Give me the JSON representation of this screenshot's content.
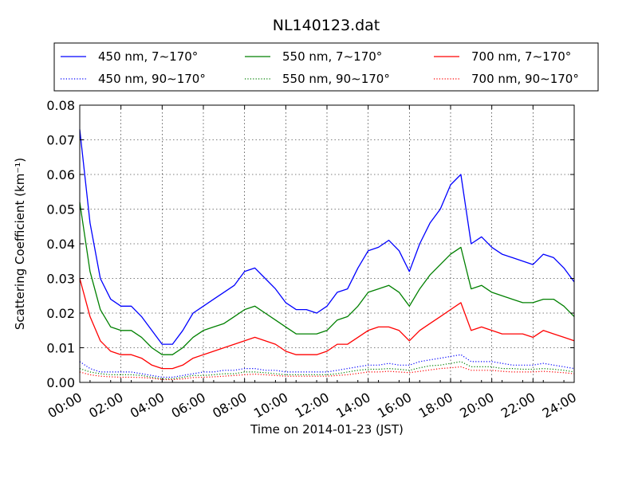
{
  "chart_data": {
    "type": "line",
    "title": "NL140123.dat",
    "xlabel": "Time on 2014-01-23 (JST)",
    "ylabel": "Scattering Coefficient (km⁻¹)",
    "xlim": [
      "00:00",
      "24:00"
    ],
    "ylim": [
      0.0,
      0.08
    ],
    "x_ticks": [
      "00:00",
      "02:00",
      "04:00",
      "06:00",
      "08:00",
      "10:00",
      "12:00",
      "14:00",
      "16:00",
      "18:00",
      "20:00",
      "22:00",
      "24:00"
    ],
    "y_ticks": [
      "0.00",
      "0.01",
      "0.02",
      "0.03",
      "0.04",
      "0.05",
      "0.06",
      "0.07",
      "0.08"
    ],
    "grid": true,
    "legend_position": "top",
    "x": [
      "00:00",
      "00:30",
      "01:00",
      "01:30",
      "02:00",
      "02:30",
      "03:00",
      "03:30",
      "04:00",
      "04:30",
      "05:00",
      "05:30",
      "06:00",
      "06:30",
      "07:00",
      "07:30",
      "08:00",
      "08:30",
      "09:00",
      "09:30",
      "10:00",
      "10:30",
      "11:00",
      "11:30",
      "12:00",
      "12:30",
      "13:00",
      "13:30",
      "14:00",
      "14:30",
      "15:00",
      "15:30",
      "16:00",
      "16:30",
      "17:00",
      "17:30",
      "18:00",
      "18:30",
      "19:00",
      "19:30",
      "20:00",
      "20:30",
      "21:00",
      "21:30",
      "22:00",
      "22:30",
      "23:00",
      "23:30",
      "24:00"
    ],
    "series": [
      {
        "name": "450 nm, 7∼170°",
        "color": "#0000ff",
        "style": "solid",
        "values": [
          0.073,
          0.046,
          0.03,
          0.024,
          0.022,
          0.022,
          0.019,
          0.015,
          0.011,
          0.011,
          0.015,
          0.02,
          0.022,
          0.024,
          0.026,
          0.028,
          0.032,
          0.033,
          0.03,
          0.027,
          0.023,
          0.021,
          0.021,
          0.02,
          0.022,
          0.026,
          0.027,
          0.033,
          0.038,
          0.039,
          0.041,
          0.038,
          0.032,
          0.04,
          0.046,
          0.05,
          0.057,
          0.06,
          0.04,
          0.042,
          0.039,
          0.037,
          0.036,
          0.035,
          0.034,
          0.037,
          0.036,
          0.033,
          0.029
        ]
      },
      {
        "name": "450 nm, 90∼170°",
        "color": "#0000ff",
        "style": "dotted",
        "values": [
          0.006,
          0.004,
          0.003,
          0.003,
          0.003,
          0.003,
          0.0025,
          0.002,
          0.0015,
          0.0015,
          0.002,
          0.0025,
          0.003,
          0.003,
          0.0035,
          0.0035,
          0.004,
          0.004,
          0.0035,
          0.0035,
          0.003,
          0.003,
          0.003,
          0.003,
          0.003,
          0.0035,
          0.004,
          0.0045,
          0.005,
          0.005,
          0.0055,
          0.005,
          0.005,
          0.006,
          0.0065,
          0.007,
          0.0075,
          0.008,
          0.006,
          0.006,
          0.006,
          0.0055,
          0.005,
          0.005,
          0.005,
          0.0055,
          0.005,
          0.0045,
          0.004
        ]
      },
      {
        "name": "550 nm, 7∼170°",
        "color": "#008000",
        "style": "solid",
        "values": [
          0.052,
          0.032,
          0.021,
          0.016,
          0.015,
          0.015,
          0.013,
          0.01,
          0.008,
          0.008,
          0.01,
          0.013,
          0.015,
          0.016,
          0.017,
          0.019,
          0.021,
          0.022,
          0.02,
          0.018,
          0.016,
          0.014,
          0.014,
          0.014,
          0.015,
          0.018,
          0.019,
          0.022,
          0.026,
          0.027,
          0.028,
          0.026,
          0.022,
          0.027,
          0.031,
          0.034,
          0.037,
          0.039,
          0.027,
          0.028,
          0.026,
          0.025,
          0.024,
          0.023,
          0.023,
          0.024,
          0.024,
          0.022,
          0.019
        ]
      },
      {
        "name": "550 nm, 90∼170°",
        "color": "#008000",
        "style": "dotted",
        "values": [
          0.004,
          0.003,
          0.0025,
          0.0022,
          0.0022,
          0.0022,
          0.002,
          0.0015,
          0.001,
          0.001,
          0.0015,
          0.002,
          0.002,
          0.0022,
          0.0025,
          0.0025,
          0.003,
          0.003,
          0.0028,
          0.0025,
          0.0022,
          0.0022,
          0.0022,
          0.0022,
          0.0022,
          0.0025,
          0.003,
          0.0035,
          0.0038,
          0.0038,
          0.004,
          0.0038,
          0.0035,
          0.0042,
          0.0048,
          0.005,
          0.0055,
          0.006,
          0.0045,
          0.0045,
          0.0045,
          0.004,
          0.004,
          0.0038,
          0.0038,
          0.004,
          0.0038,
          0.0035,
          0.003
        ]
      },
      {
        "name": "700 nm, 7∼170°",
        "color": "#ff0000",
        "style": "solid",
        "values": [
          0.03,
          0.019,
          0.012,
          0.009,
          0.008,
          0.008,
          0.007,
          0.005,
          0.004,
          0.004,
          0.005,
          0.007,
          0.008,
          0.009,
          0.01,
          0.011,
          0.012,
          0.013,
          0.012,
          0.011,
          0.009,
          0.008,
          0.008,
          0.008,
          0.009,
          0.011,
          0.011,
          0.013,
          0.015,
          0.016,
          0.016,
          0.015,
          0.012,
          0.015,
          0.017,
          0.019,
          0.021,
          0.023,
          0.015,
          0.016,
          0.015,
          0.014,
          0.014,
          0.014,
          0.013,
          0.015,
          0.014,
          0.013,
          0.012
        ]
      },
      {
        "name": "700 nm, 90∼170°",
        "color": "#ff0000",
        "style": "dotted",
        "values": [
          0.003,
          0.0022,
          0.0018,
          0.0016,
          0.0015,
          0.0015,
          0.0014,
          0.0012,
          0.0008,
          0.0008,
          0.001,
          0.0014,
          0.0015,
          0.0016,
          0.0018,
          0.002,
          0.0022,
          0.0024,
          0.0022,
          0.002,
          0.0018,
          0.0018,
          0.0018,
          0.0018,
          0.0018,
          0.002,
          0.0022,
          0.0026,
          0.003,
          0.003,
          0.0032,
          0.003,
          0.0028,
          0.0032,
          0.0036,
          0.004,
          0.0042,
          0.0045,
          0.0035,
          0.0035,
          0.0035,
          0.0032,
          0.003,
          0.003,
          0.003,
          0.0032,
          0.003,
          0.0028,
          0.0025
        ]
      }
    ]
  }
}
